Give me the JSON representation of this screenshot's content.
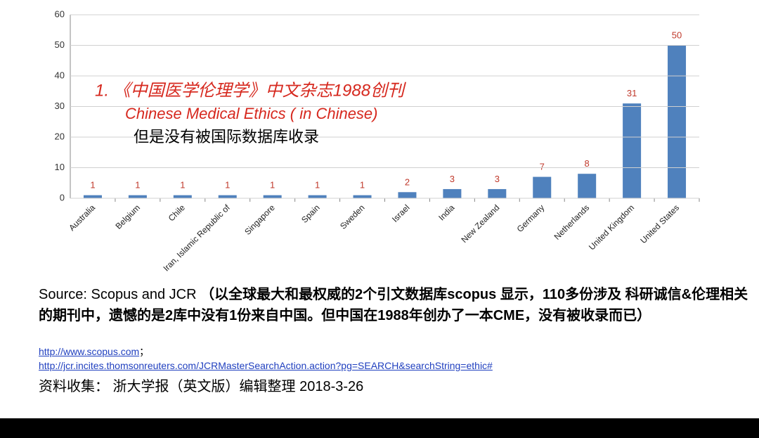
{
  "chart_data": {
    "type": "bar",
    "categories": [
      "Australia",
      "Belgium",
      "Chile",
      "Iran, Islamic Republic of",
      "Singapore",
      "Spain",
      "Sweden",
      "Israel",
      "India",
      "New Zealand",
      "Germany",
      "Netherlands",
      "United Kingdom",
      "United States"
    ],
    "values": [
      1,
      1,
      1,
      1,
      1,
      1,
      1,
      2,
      3,
      3,
      7,
      8,
      31,
      50
    ],
    "color": "#4f81bd",
    "label_color": "#c0392b",
    "ylim": [
      0,
      60
    ],
    "yticks": [
      0,
      10,
      20,
      30,
      40,
      50,
      60
    ],
    "grid": true,
    "annotations": [
      "1. 《中国医学伦理学》中文杂志1988创刊",
      "Chinese Medical Ethics ( in Chinese)",
      "但是没有被国际数据库收录"
    ]
  },
  "notes": {
    "source_label": "Source: Scopus and JCR",
    "source_text": "（以全球最大和最权威的2个引文数据库scopus 显示，110多份涉及 科研诚信&伦理相关的期刊中，遗憾的是2库中没有1份来自中国。但中国在1988年创办了一本CME，没有被收录而已）",
    "links": [
      "http://www.scopus.com",
      "http://jcr.incites.thomsonreuters.com/JCRMasterSearchAction.action?pg=SEARCH&searchString=ethic#"
    ],
    "link_separator": "；",
    "footer": "资料收集：  浙大学报（英文版）编辑整理  2018-3-26"
  }
}
